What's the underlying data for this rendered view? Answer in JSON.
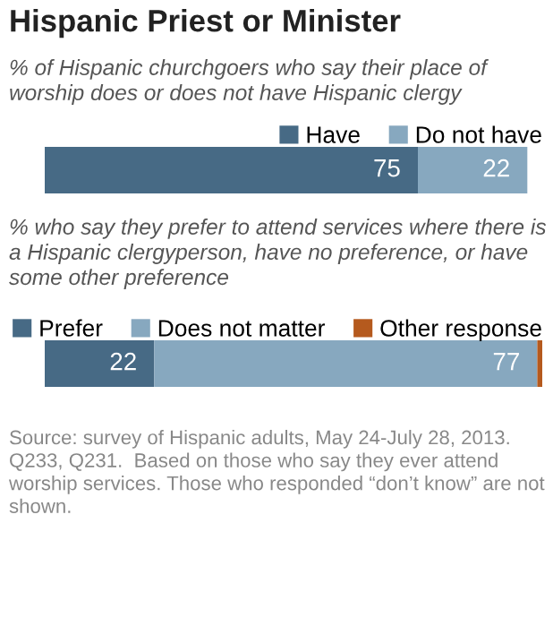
{
  "chart_data": [
    {
      "type": "bar",
      "orientation": "horizontal",
      "stacked": true,
      "title": "Hispanic Priest or Minister",
      "subtitle": "% of Hispanic churchgoers who say their place of worship does or does not have Hispanic clergy",
      "categories": [
        null
      ],
      "tick_labels": false,
      "legend": "top right",
      "data_labels": true,
      "series": [
        {
          "name": "Have",
          "color": "#476a85",
          "values": [
            75
          ]
        },
        {
          "name": "Do not have",
          "color": "#87a8bf",
          "values": [
            22
          ]
        }
      ]
    },
    {
      "type": "bar",
      "orientation": "horizontal",
      "stacked": true,
      "subtitle": "% who say they prefer to attend services where there is a Hispanic clergyperson, have no preference, or have some other preference",
      "categories": [
        null
      ],
      "tick_labels": false,
      "legend": "top right",
      "annotations": [
        "Source: survey of Hispanic adults, May 24-July 28, 2013. Q233, Q231.  Based on those who say they ever attend worship services. Those who responded “don’t know” are not shown."
      ],
      "series": [
        {
          "name": "Prefer",
          "color": "#476a85",
          "values": [
            22
          ],
          "value_labels": [
            "22"
          ]
        },
        {
          "name": "Does not matter",
          "color": "#87a8bf",
          "values": [
            77
          ],
          "value_labels": [
            "77"
          ]
        },
        {
          "name": "Other response",
          "color": "#b55a1e",
          "values": [
            1
          ],
          "value_labels": [
            null
          ]
        }
      ]
    }
  ]
}
